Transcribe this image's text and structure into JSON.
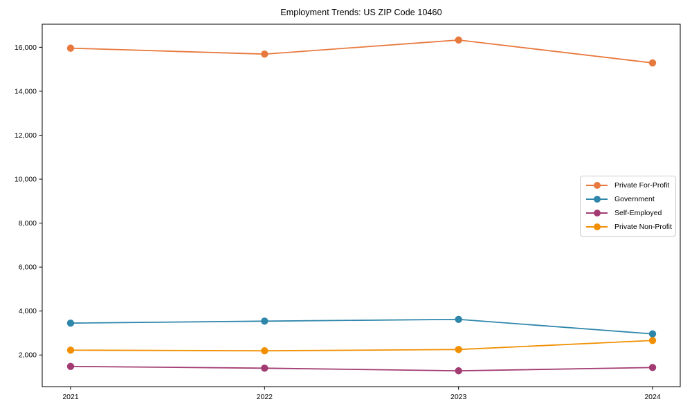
{
  "title": "Employment Trends: US ZIP Code 10460",
  "chart_data": {
    "type": "line",
    "title": "Employment Trends: US ZIP Code 10460",
    "xlabel": "",
    "ylabel": "",
    "x": [
      2021,
      2022,
      2023,
      2024
    ],
    "x_labels": [
      "2021",
      "2022",
      "2023",
      "2024"
    ],
    "y_ticks": [
      2000,
      4000,
      6000,
      8000,
      10000,
      12000,
      14000,
      16000
    ],
    "y_tick_labels": [
      "2,000",
      "4,000",
      "6,000",
      "8,000",
      "10,000",
      "12,000",
      "14,000",
      "16,000"
    ],
    "ylim": [
      560,
      17050
    ],
    "grid": false,
    "legend_position": "center-right",
    "series": [
      {
        "name": "Private For-Profit",
        "color": "#E8793E",
        "values": [
          15960,
          15690,
          16330,
          15290
        ]
      },
      {
        "name": "Government",
        "color": "#2E86AB",
        "values": [
          3450,
          3540,
          3620,
          2960
        ]
      },
      {
        "name": "Self-Employed",
        "color": "#A23B72",
        "values": [
          1480,
          1400,
          1280,
          1430
        ]
      },
      {
        "name": "Private Non-Profit",
        "color": "#F18F01",
        "values": [
          2220,
          2190,
          2250,
          2660
        ]
      }
    ]
  }
}
